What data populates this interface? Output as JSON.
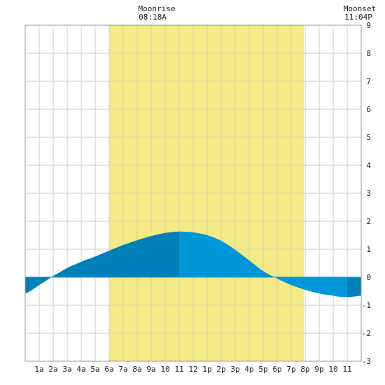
{
  "header": {
    "moonrise": {
      "label": "Moonrise",
      "time": "08:18A"
    },
    "moonset": {
      "label": "Moonset",
      "time": "11:04P"
    }
  },
  "colors": {
    "daylight": "#f5eb86",
    "tide_rising_past": "#0080b9",
    "tide_falling": "#0096d8",
    "grid": "#cccccc",
    "frame": "#999999",
    "zero_line": "#0096d8"
  },
  "chart_data": {
    "type": "area",
    "title": "",
    "xlabel": "",
    "ylabel": "",
    "xlim": [
      0,
      24
    ],
    "ylim": [
      -3,
      9
    ],
    "grid": true,
    "y_ticks": [
      -3,
      -2,
      -1,
      0,
      1,
      2,
      3,
      4,
      5,
      6,
      7,
      8,
      9
    ],
    "x_ticks": [
      {
        "hour": 1,
        "label": "1a"
      },
      {
        "hour": 2,
        "label": "2a"
      },
      {
        "hour": 3,
        "label": "3a"
      },
      {
        "hour": 4,
        "label": "4a"
      },
      {
        "hour": 5,
        "label": "5a"
      },
      {
        "hour": 6,
        "label": "6a"
      },
      {
        "hour": 7,
        "label": "7a"
      },
      {
        "hour": 8,
        "label": "8a"
      },
      {
        "hour": 9,
        "label": "9a"
      },
      {
        "hour": 10,
        "label": "10"
      },
      {
        "hour": 11,
        "label": "11"
      },
      {
        "hour": 12,
        "label": "12"
      },
      {
        "hour": 13,
        "label": "1p"
      },
      {
        "hour": 14,
        "label": "2p"
      },
      {
        "hour": 15,
        "label": "3p"
      },
      {
        "hour": 16,
        "label": "4p"
      },
      {
        "hour": 17,
        "label": "5p"
      },
      {
        "hour": 18,
        "label": "6p"
      },
      {
        "hour": 19,
        "label": "7p"
      },
      {
        "hour": 20,
        "label": "8p"
      },
      {
        "hour": 21,
        "label": "9p"
      },
      {
        "hour": 22,
        "label": "10"
      },
      {
        "hour": 23,
        "label": "11"
      }
    ],
    "daylight": {
      "start_hour": 6.0,
      "end_hour": 19.9
    },
    "tide_events": [
      {
        "type": "low",
        "hour": 22.9,
        "value": -0.7
      },
      {
        "type": "high",
        "hour": 10.95,
        "value": 1.63
      }
    ],
    "series": [
      {
        "x": [
          0,
          0.5,
          1,
          1.5,
          2,
          3,
          4,
          5,
          6,
          7,
          8,
          9,
          10,
          11,
          11.5,
          12,
          13,
          14,
          15,
          16,
          17,
          18,
          19,
          20,
          21,
          22,
          22.5,
          23,
          23.5,
          24
        ],
        "values": [
          -0.58,
          -0.45,
          -0.28,
          -0.12,
          0.05,
          0.33,
          0.55,
          0.74,
          0.95,
          1.15,
          1.32,
          1.47,
          1.58,
          1.63,
          1.62,
          1.6,
          1.5,
          1.3,
          0.98,
          0.6,
          0.22,
          -0.05,
          -0.28,
          -0.45,
          -0.58,
          -0.66,
          -0.7,
          -0.71,
          -0.69,
          -0.66
        ]
      }
    ],
    "color_segments": [
      {
        "start_hour": 0,
        "end_hour": 1.2,
        "color_key": "tide_rising_past"
      },
      {
        "start_hour": 1.2,
        "end_hour": 11.0,
        "color_key": "tide_rising_past"
      },
      {
        "start_hour": 11.0,
        "end_hour": 23.0,
        "color_key": "tide_falling"
      },
      {
        "start_hour": 23.0,
        "end_hour": 24.0,
        "color_key": "tide_rising_past"
      }
    ]
  }
}
